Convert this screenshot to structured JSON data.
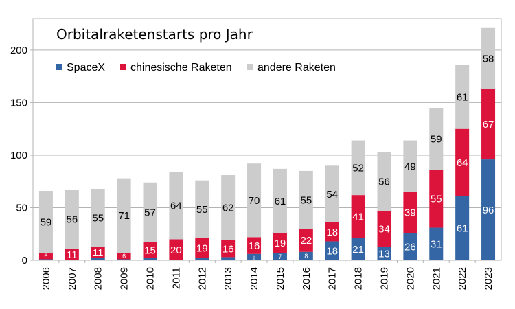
{
  "chart_data": {
    "type": "bar",
    "stacked": true,
    "title": "Orbitalraketenstarts pro Jahr",
    "xlabel": "",
    "ylabel": "",
    "ylim": [
      0,
      230
    ],
    "yticks": [
      0,
      50,
      100,
      150,
      200
    ],
    "grid": "horizontal",
    "legend_position": "top-left",
    "categories": [
      "2006",
      "2007",
      "2008",
      "2009",
      "2010",
      "2011",
      "2012",
      "2013",
      "2014",
      "2015",
      "2016",
      "2017",
      "2018",
      "2019",
      "2020",
      "2021",
      "2022",
      "2023"
    ],
    "series": [
      {
        "name": "SpaceX",
        "color": "#3465a4",
        "values": [
          1,
          0,
          2,
          1,
          2,
          0,
          2,
          3,
          6,
          7,
          8,
          18,
          21,
          13,
          26,
          31,
          61,
          96
        ],
        "labels": [
          "",
          "",
          "",
          "",
          "",
          "",
          "",
          "",
          "6",
          "7",
          "8",
          "18",
          "21",
          "13",
          "26",
          "31",
          "61",
          "96"
        ]
      },
      {
        "name": "chinesische Raketen",
        "color": "#dc143c",
        "values": [
          6,
          11,
          11,
          6,
          15,
          20,
          19,
          16,
          16,
          19,
          22,
          18,
          41,
          34,
          39,
          55,
          64,
          67
        ],
        "labels": [
          "6",
          "11",
          "11",
          "6",
          "15",
          "20",
          "19",
          "16",
          "16",
          "19",
          "22",
          "18",
          "41",
          "34",
          "39",
          "55",
          "64",
          "67"
        ]
      },
      {
        "name": "andere Raketen",
        "color": "#cccccc",
        "values": [
          59,
          56,
          55,
          71,
          57,
          64,
          55,
          62,
          70,
          61,
          55,
          54,
          52,
          56,
          49,
          59,
          61,
          58
        ],
        "labels": [
          "59",
          "56",
          "55",
          "71",
          "57",
          "64",
          "55",
          "62",
          "70",
          "61",
          "55",
          "54",
          "52",
          "56",
          "49",
          "59",
          "61",
          "58"
        ]
      }
    ]
  }
}
